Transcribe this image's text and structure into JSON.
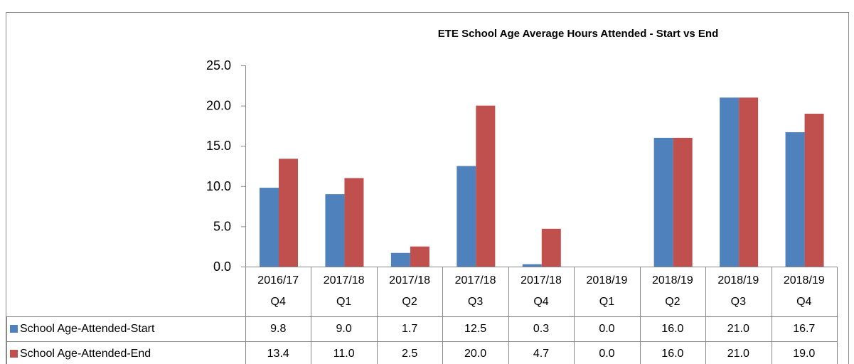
{
  "chart_data": {
    "type": "bar",
    "title": "ETE School Age Average Hours Attended - Start vs End",
    "categories": [
      "2016/17 Q4",
      "2017/18 Q1",
      "2017/18 Q2",
      "2017/18 Q3",
      "2017/18 Q4",
      "2018/19 Q1",
      "2018/19 Q2",
      "2018/19 Q3",
      "2018/19 Q4"
    ],
    "series": [
      {
        "name": "School Age-Attended-Start",
        "color": "#4f81bd",
        "values": [
          9.8,
          9,
          1.7,
          12.5,
          0.3,
          0,
          16,
          21,
          16.7
        ],
        "value_labels": [
          "9.8",
          "9.0",
          "1.7",
          "12.5",
          "0.3",
          "0.0",
          "16.0",
          "21.0",
          "16.7"
        ]
      },
      {
        "name": "School Age-Attended-End",
        "color": "#c0504d",
        "values": [
          13.4,
          11,
          2.5,
          20,
          4.7,
          0,
          16,
          21,
          19
        ],
        "value_labels": [
          "13.4",
          "11.0",
          "2.5",
          "20.0",
          "4.7",
          "0.0",
          "16.0",
          "21.0",
          "19.0"
        ]
      }
    ],
    "ylim": [
      0,
      25
    ],
    "yticks": [
      {
        "value": 0,
        "label": "0.0"
      },
      {
        "value": 5,
        "label": "5.0"
      },
      {
        "value": 10,
        "label": "10.0"
      },
      {
        "value": 15,
        "label": "15.0"
      },
      {
        "value": 20,
        "label": "20.0"
      },
      {
        "value": 25,
        "label": "25.0"
      }
    ],
    "grid": false,
    "legend": "table"
  }
}
